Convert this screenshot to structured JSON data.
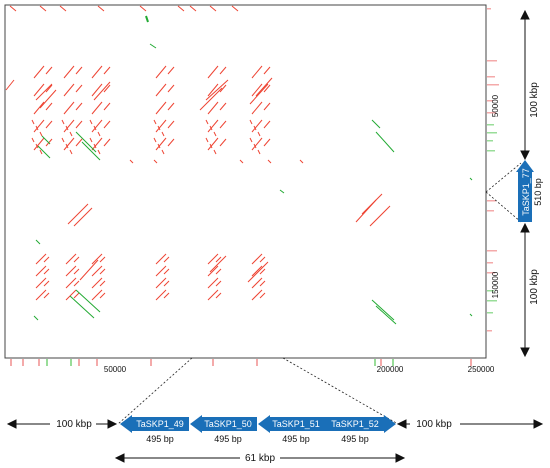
{
  "plot": {
    "x_ticks": [
      "50000",
      "200000",
      "250000"
    ],
    "y_ticks": [
      "50000",
      "150000"
    ]
  },
  "right_scale": {
    "top_label": "100 kbp",
    "bottom_label": "100 kbp",
    "gene": {
      "name": "TaSKP1_77",
      "size": "510 bp"
    }
  },
  "bottom_scale": {
    "left_label": "100 kbp",
    "right_label": "100 kbp",
    "span_label": "61 kbp",
    "genes": [
      {
        "name": "TaSKP1_49",
        "size": "495 bp"
      },
      {
        "name": "TaSKP1_50",
        "size": "495 bp"
      },
      {
        "name": "TaSKP1_51",
        "size": "495 bp"
      },
      {
        "name": "TaSKP1_52",
        "size": "495 bp"
      }
    ]
  },
  "colors": {
    "forward_match": "#ee4433",
    "reverse_match": "#22aa33",
    "gene_arrow": "#1a6fb8",
    "marginal_red": "#f4aaaa",
    "marginal_green": "#99dd99"
  }
}
